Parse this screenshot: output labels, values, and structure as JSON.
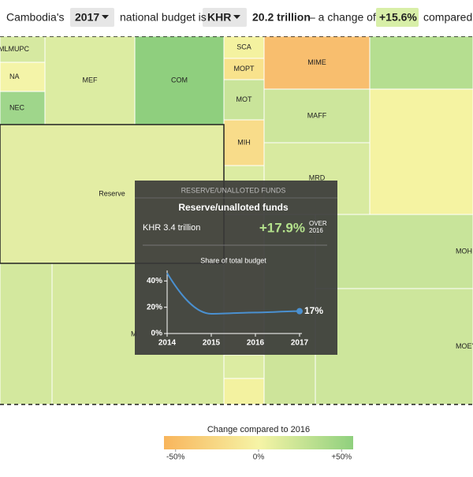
{
  "header": {
    "prefix": "Cambodia's",
    "year": "2017",
    "middle": "national budget is",
    "currency": "KHR",
    "amount": "20.2 trillion",
    "change_text": "– a change of",
    "change": "+15.6%",
    "suffix": "compared"
  },
  "treemap": {
    "cells": [
      {
        "label": "MLMUPC",
        "color": "#d6e9a1"
      },
      {
        "label": "NA",
        "color": "#f4f4a8"
      },
      {
        "label": "NEC",
        "color": "#9fd68b"
      },
      {
        "label": "MEF",
        "color": "#dcec a2"
      },
      {
        "label": "COM",
        "color": "#8fcf7e"
      },
      {
        "label": "SCA",
        "color": "#f4f2a0"
      },
      {
        "label": "MOPT",
        "color": "#f8e28c"
      },
      {
        "label": "MOT",
        "color": "#c9e49a"
      },
      {
        "label": "MIH",
        "color": "#f8dc8a"
      },
      {
        "label": "MIME",
        "color": "#f8be6e"
      },
      {
        "label": "MAFF",
        "color": "#cde69c"
      },
      {
        "label": "MRD",
        "color": "#d8eaa0"
      },
      {
        "label": "Reserve",
        "color": "#e3eda4"
      },
      {
        "label": "MOH",
        "color": "#c8e49a"
      },
      {
        "label": "MOEY",
        "color": "#cde69c"
      },
      {
        "label": "M",
        "color": "#d6e99f"
      }
    ]
  },
  "tooltip": {
    "heading": "RESERVE/UNALLOTED FUNDS",
    "name": "Reserve/unalloted funds",
    "amount": "KHR 3.4 trillion",
    "change": "+17.9%",
    "over": "OVER",
    "over_year": "2016"
  },
  "chart_data": {
    "type": "line",
    "title": "Share of total budget",
    "x": [
      2014,
      2015,
      2016,
      2017
    ],
    "values": [
      46,
      15,
      16,
      17
    ],
    "value_labels": [
      null,
      null,
      null,
      "17%"
    ],
    "color": "#4a90d0",
    "xlim": [
      2014,
      2017
    ],
    "xticks": [
      2014,
      2015,
      2016,
      2017
    ],
    "ylim": [
      0,
      48
    ],
    "yticks": [
      {
        "value": 0,
        "label": "0%"
      },
      {
        "value": 20,
        "label": "20%"
      },
      {
        "value": 40,
        "label": "40%"
      }
    ]
  },
  "legend": {
    "title": "Change compared to 2016",
    "range": [
      -57,
      57
    ],
    "ticks": [
      {
        "value": -50,
        "label": "-50%"
      },
      {
        "value": 0,
        "label": "0%"
      },
      {
        "value": 50,
        "label": "+50%"
      }
    ],
    "colors": [
      "#f8b55c",
      "#f6f4a6",
      "#8fd07e"
    ]
  }
}
